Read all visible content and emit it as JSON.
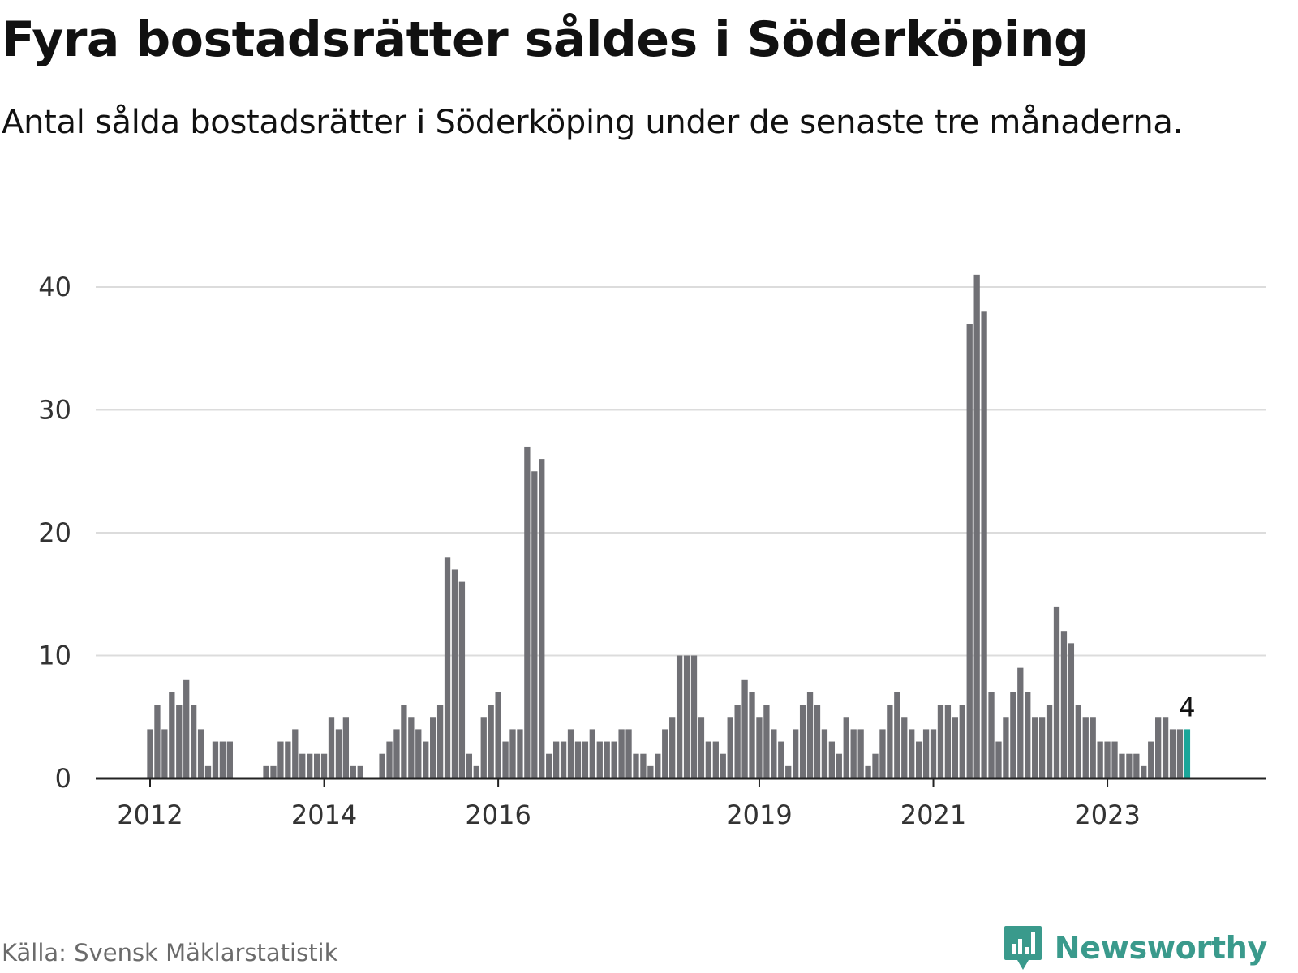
{
  "header": {
    "title": "Fyra bostadsrätter såldes i Söderköping",
    "subtitle": "Antal sålda bostadsrätter i Söderköping under de senaste tre månaderna."
  },
  "footer": {
    "source": "Källa: Svensk Mäklarstatistik",
    "brand": "Newsworthy"
  },
  "colors": {
    "bar": "#707075",
    "highlight": "#1aa69a",
    "grid": "#dcdcdc",
    "axis": "#222222",
    "brand": "#3a9a8c"
  },
  "chart_data": {
    "type": "bar",
    "title": "Fyra bostadsrätter såldes i Söderköping",
    "subtitle": "Antal sålda bostadsrätter i Söderköping under de senaste tre månaderna.",
    "x_start": "2012-01",
    "x_ticks": [
      "2012",
      "2014",
      "2016",
      "2019",
      "2021",
      "2023"
    ],
    "y_ticks": [
      0,
      10,
      20,
      30,
      40
    ],
    "ylim": [
      0,
      42
    ],
    "values": [
      4,
      6,
      4,
      7,
      6,
      8,
      6,
      4,
      1,
      3,
      3,
      3,
      0,
      0,
      0,
      0,
      1,
      1,
      3,
      3,
      4,
      2,
      2,
      2,
      2,
      5,
      4,
      5,
      1,
      1,
      0,
      0,
      2,
      3,
      4,
      6,
      5,
      4,
      3,
      5,
      6,
      18,
      17,
      16,
      2,
      1,
      5,
      6,
      7,
      3,
      4,
      4,
      27,
      25,
      26,
      2,
      3,
      3,
      4,
      3,
      3,
      4,
      3,
      3,
      3,
      4,
      4,
      2,
      2,
      1,
      2,
      4,
      5,
      10,
      10,
      10,
      5,
      3,
      3,
      2,
      5,
      6,
      8,
      7,
      5,
      6,
      4,
      3,
      1,
      4,
      6,
      7,
      6,
      4,
      3,
      2,
      5,
      4,
      4,
      1,
      2,
      4,
      6,
      7,
      5,
      4,
      3,
      4,
      4,
      6,
      6,
      5,
      6,
      37,
      41,
      38,
      7,
      3,
      5,
      7,
      9,
      7,
      5,
      5,
      6,
      14,
      12,
      11,
      6,
      5,
      5,
      3,
      3,
      3,
      2,
      2,
      2,
      1,
      3,
      5,
      5,
      4,
      4,
      4
    ],
    "highlight_last": true,
    "last_value_label": "4",
    "grid": true,
    "legend": "none"
  }
}
